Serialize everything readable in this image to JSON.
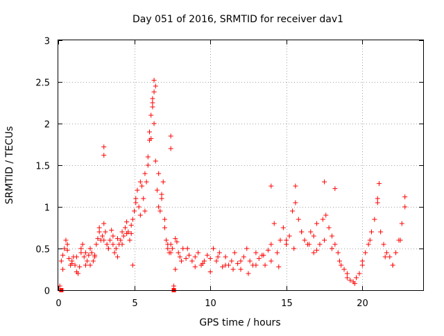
{
  "chart_data": {
    "type": "scatter",
    "title": "Day 051 of 2016, SRMTID for receiver dav1",
    "xlabel": "GPS time / hours",
    "ylabel": "SRMTID / TECUs",
    "xlim": [
      0,
      24
    ],
    "ylim": [
      0,
      3
    ],
    "xticks": [
      0,
      5,
      10,
      15,
      20
    ],
    "yticks": [
      0,
      0.5,
      1,
      1.5,
      2,
      2.5,
      3
    ],
    "xtick_labels": [
      "0",
      "5",
      "10",
      "15",
      "20"
    ],
    "ytick_labels": [
      "0",
      "0.5",
      "1",
      "1.5",
      "2",
      "2.5",
      "3"
    ],
    "grid": true,
    "marker": "+",
    "color": "#ff0000",
    "baseline_markers": {
      "marker": "square",
      "x": [
        0.2,
        7.6
      ],
      "y": [
        0,
        0
      ]
    },
    "series": [
      {
        "name": "dav1",
        "x": [
          0.1,
          0.2,
          0.3,
          0.4,
          0.5,
          0.6,
          0.7,
          0.8,
          0.9,
          1.0,
          1.1,
          1.2,
          1.3,
          1.4,
          1.5,
          1.6,
          1.7,
          1.8,
          1.9,
          2.0,
          2.1,
          2.2,
          2.3,
          2.4,
          2.5,
          2.6,
          2.7,
          2.8,
          2.9,
          3.0,
          3.1,
          3.2,
          3.3,
          3.4,
          3.5,
          3.6,
          3.7,
          3.8,
          3.9,
          4.0,
          4.1,
          4.2,
          4.3,
          4.4,
          4.5,
          4.6,
          4.7,
          4.8,
          4.9,
          5.0,
          5.1,
          5.2,
          5.3,
          5.4,
          5.5,
          5.6,
          5.7,
          5.8,
          5.9,
          6.0,
          6.1,
          6.2,
          6.3,
          6.4,
          6.5,
          6.6,
          6.7,
          6.8,
          6.9,
          7.0,
          7.1,
          7.2,
          7.3,
          7.4,
          7.5,
          7.6,
          7.7,
          7.8,
          7.9,
          8.0,
          8.2,
          8.4,
          8.6,
          8.8,
          9.0,
          9.2,
          9.4,
          9.6,
          9.8,
          10.0,
          10.2,
          10.4,
          10.6,
          10.8,
          11.0,
          11.2,
          11.4,
          11.6,
          11.8,
          12.0,
          12.2,
          12.4,
          12.6,
          12.8,
          13.0,
          13.2,
          13.4,
          13.6,
          13.8,
          14.0,
          14.2,
          14.4,
          14.6,
          14.8,
          15.0,
          15.2,
          15.4,
          15.6,
          15.8,
          16.0,
          16.2,
          16.4,
          16.6,
          16.8,
          17.0,
          17.2,
          17.4,
          17.6,
          17.8,
          18.0,
          18.2,
          18.4,
          18.6,
          18.8,
          19.0,
          19.2,
          19.4,
          19.6,
          19.8,
          20.0,
          20.2,
          20.4,
          20.6,
          20.8,
          21.0,
          21.2,
          21.4,
          21.6,
          21.8,
          22.0,
          22.2,
          22.4,
          22.6,
          22.8,
          0.3,
          0.6,
          0.9,
          1.2,
          1.5,
          1.8,
          2.1,
          2.4,
          2.7,
          3.0,
          3.3,
          3.6,
          3.9,
          4.2,
          4.5,
          4.8,
          5.1,
          5.4,
          5.7,
          6.0,
          6.2,
          6.4,
          6.6,
          6.8,
          7.0,
          7.2,
          7.4,
          7.7,
          8.1,
          8.5,
          9.0,
          9.5,
          10.0,
          10.5,
          11.0,
          11.5,
          12.0,
          12.5,
          13.0,
          13.5,
          14.0,
          14.5,
          15.0,
          15.5,
          16.0,
          16.5,
          17.0,
          17.5,
          18.0,
          18.5,
          19.0,
          19.5,
          20.0,
          20.5,
          21.0,
          21.5,
          22.0,
          22.5,
          3.0,
          3.0,
          6.3,
          6.3,
          6.2,
          6.1,
          7.4,
          7.4,
          5.9,
          4.9,
          17.5,
          18.2,
          21.1,
          22.8,
          16.8,
          15.6,
          14.0
        ],
        "y": [
          0.05,
          0.35,
          0.42,
          0.5,
          0.6,
          0.48,
          0.38,
          0.3,
          0.35,
          0.4,
          0.3,
          0.22,
          0.2,
          0.28,
          0.45,
          0.55,
          0.4,
          0.3,
          0.35,
          0.42,
          0.5,
          0.45,
          0.35,
          0.4,
          0.55,
          0.62,
          0.7,
          0.6,
          0.65,
          0.8,
          0.7,
          0.55,
          0.5,
          0.6,
          0.72,
          0.55,
          0.45,
          0.5,
          0.62,
          0.55,
          0.6,
          0.7,
          0.65,
          0.75,
          0.82,
          0.7,
          0.6,
          0.68,
          0.85,
          0.95,
          1.1,
          1.2,
          1.0,
          0.9,
          1.25,
          1.1,
          0.95,
          1.3,
          1.6,
          1.9,
          2.1,
          2.3,
          2.0,
          1.55,
          1.2,
          1.0,
          0.95,
          1.1,
          1.3,
          0.75,
          0.6,
          0.5,
          0.45,
          0.55,
          0.5,
          0.05,
          0.62,
          0.58,
          0.45,
          0.4,
          0.5,
          0.38,
          0.42,
          0.35,
          0.4,
          0.45,
          0.3,
          0.35,
          0.42,
          0.38,
          0.5,
          0.35,
          0.45,
          0.28,
          0.4,
          0.3,
          0.35,
          0.45,
          0.32,
          0.25,
          0.4,
          0.5,
          0.35,
          0.3,
          0.45,
          0.38,
          0.42,
          0.3,
          0.48,
          0.55,
          0.8,
          0.45,
          0.6,
          0.75,
          0.55,
          0.65,
          0.95,
          1.05,
          0.85,
          0.7,
          0.6,
          0.55,
          0.7,
          0.65,
          0.8,
          0.55,
          0.85,
          0.9,
          0.75,
          0.65,
          0.55,
          0.45,
          0.3,
          0.25,
          0.15,
          0.12,
          0.1,
          0.15,
          0.2,
          0.35,
          0.45,
          0.55,
          0.7,
          0.85,
          1.05,
          0.7,
          0.55,
          0.45,
          0.4,
          0.3,
          0.45,
          0.6,
          0.8,
          1.0,
          0.25,
          0.55,
          0.32,
          0.4,
          0.5,
          0.45,
          0.3,
          0.42,
          0.75,
          0.6,
          0.5,
          0.65,
          0.4,
          0.55,
          0.68,
          0.78,
          1.05,
          1.3,
          1.4,
          1.8,
          2.2,
          2.45,
          1.4,
          1.15,
          0.85,
          0.55,
          0.45,
          0.25,
          0.35,
          0.5,
          0.28,
          0.32,
          0.22,
          0.4,
          0.3,
          0.25,
          0.35,
          0.2,
          0.3,
          0.42,
          0.35,
          0.28,
          0.6,
          0.5,
          0.7,
          0.55,
          0.48,
          0.6,
          0.5,
          0.35,
          0.2,
          0.08,
          0.3,
          0.6,
          1.1,
          0.4,
          0.3,
          0.6,
          1.72,
          1.62,
          2.52,
          2.38,
          2.25,
          1.82,
          1.85,
          1.7,
          1.5,
          0.3,
          1.3,
          1.22,
          1.28,
          1.12,
          0.45,
          1.25,
          1.25
        ]
      }
    ]
  }
}
